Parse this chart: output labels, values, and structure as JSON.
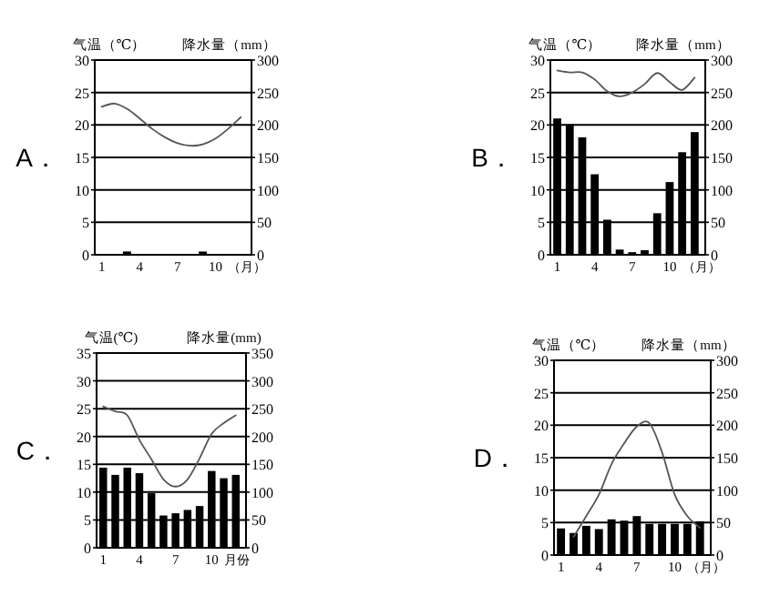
{
  "chart_data": [
    {
      "type": "bar",
      "title": "A．",
      "ylabel": "气温（℃）",
      "y2label": "降水量（mm）",
      "xlabel": "（月）",
      "categories": [
        "1",
        null,
        null,
        "4",
        null,
        null,
        "7",
        null,
        null,
        "10",
        null,
        null
      ],
      "ylim": [
        0,
        30
      ],
      "yticks": [
        0,
        5,
        10,
        15,
        20,
        25,
        30
      ],
      "y2lim": [
        0,
        300
      ],
      "y2ticks": [
        0,
        50,
        100,
        150,
        200,
        250,
        300
      ],
      "grid": "y",
      "series": [
        {
          "axis": "y2",
          "color": "#000000",
          "values": [
            0,
            0,
            5,
            0,
            0,
            0,
            0,
            0,
            5,
            0,
            0,
            0
          ]
        },
        {
          "type": "line",
          "color": "#555555",
          "values": [
            22.8,
            23.3,
            22.5,
            21,
            19.4,
            18.1,
            17.2,
            16.8,
            17,
            17.9,
            19.4,
            21.2
          ]
        }
      ]
    },
    {
      "type": "bar",
      "title": "B．",
      "ylabel": "气温（℃）",
      "y2label": "降水量（mm）",
      "xlabel": "（月）",
      "categories": [
        "1",
        null,
        null,
        "4",
        null,
        null,
        "7",
        null,
        null,
        "10",
        null,
        null
      ],
      "ylim": [
        0,
        30
      ],
      "yticks": [
        0,
        5,
        10,
        15,
        20,
        25,
        30
      ],
      "y2lim": [
        0,
        300
      ],
      "y2ticks": [
        0,
        50,
        100,
        150,
        200,
        250,
        300
      ],
      "grid": "y",
      "series": [
        {
          "axis": "y2",
          "color": "#000000",
          "values": [
            210,
            201,
            181,
            124,
            54,
            8,
            4,
            7,
            64,
            112,
            158,
            189
          ]
        },
        {
          "type": "line",
          "color": "#555555",
          "values": [
            28.4,
            28.1,
            28.1,
            27,
            25.2,
            24.4,
            25,
            26.3,
            28,
            26.6,
            25.4,
            27.3
          ]
        }
      ]
    },
    {
      "type": "bar",
      "title": "C．",
      "ylabel": "气温(℃)",
      "y2label": "降水量(mm)",
      "xlabel": "月份",
      "categories": [
        "1",
        null,
        null,
        "4",
        null,
        null,
        "7",
        null,
        null,
        "10",
        null,
        null
      ],
      "ylim": [
        0,
        35
      ],
      "yticks": [
        0,
        5,
        10,
        15,
        20,
        25,
        30,
        35
      ],
      "y2lim": [
        0,
        350
      ],
      "y2ticks": [
        0,
        50,
        100,
        150,
        200,
        250,
        300,
        350
      ],
      "grid": "y",
      "series": [
        {
          "axis": "y2",
          "color": "#000000",
          "values": [
            144,
            131,
            144,
            134,
            98,
            58,
            62,
            68,
            75,
            138,
            125,
            131
          ]
        },
        {
          "type": "line",
          "color": "#555555",
          "values": [
            25.4,
            24.5,
            23.8,
            19.4,
            15.9,
            12.3,
            11,
            12.3,
            16.1,
            20.5,
            22.4,
            23.8
          ]
        }
      ]
    },
    {
      "type": "bar",
      "title": "D．",
      "ylabel": "气温（℃）",
      "y2label": "降水量（mm）",
      "xlabel": "（月）",
      "categories": [
        "1",
        null,
        null,
        "4",
        null,
        null,
        "7",
        null,
        null,
        "10",
        null,
        null
      ],
      "ylim": [
        0,
        30
      ],
      "yticks": [
        0,
        5,
        10,
        15,
        20,
        25,
        30
      ],
      "y2lim": [
        0,
        300
      ],
      "y2ticks": [
        0,
        50,
        100,
        150,
        200,
        250,
        300
      ],
      "grid": "y",
      "series": [
        {
          "axis": "y2",
          "color": "#000000",
          "values": [
            41,
            34,
            45,
            40,
            55,
            53,
            60,
            48,
            48,
            48,
            48,
            52
          ]
        },
        {
          "type": "line",
          "color": "#555555",
          "values": [
            null,
            2.8,
            6,
            9.3,
            14,
            17.2,
            19.8,
            20.3,
            15.8,
            9.3,
            6,
            4.2
          ]
        }
      ]
    }
  ]
}
